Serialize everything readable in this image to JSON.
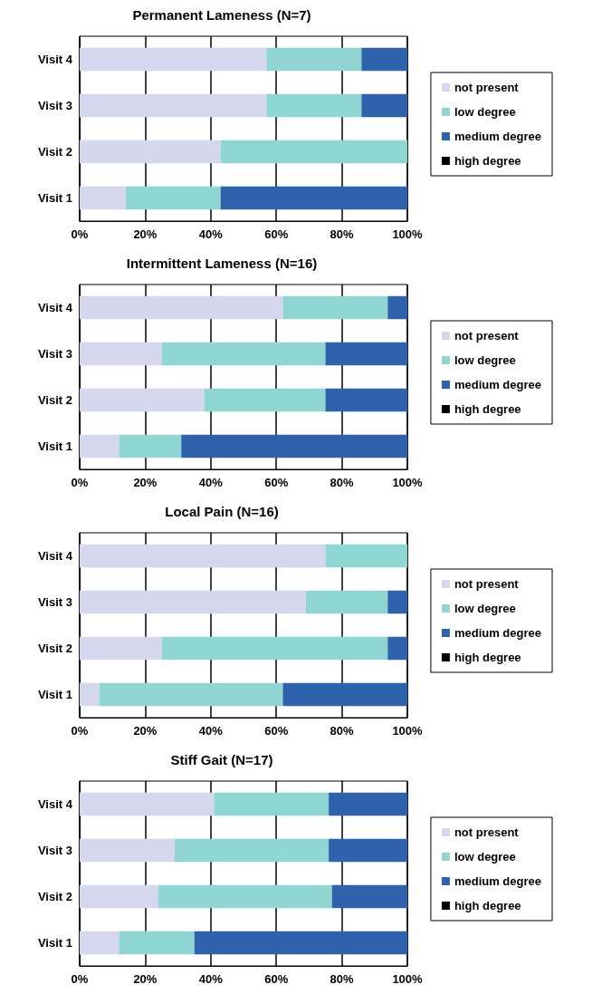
{
  "chart_data": [
    {
      "type": "bar",
      "orientation": "horizontal",
      "stacked": true,
      "title": "Permanent Lameness (N=7)",
      "categories": [
        "Visit 4",
        "Visit 3",
        "Visit 2",
        "Visit 1"
      ],
      "series": [
        {
          "name": "not present",
          "color": "#d4d7ee",
          "values": [
            57,
            57,
            43,
            14
          ]
        },
        {
          "name": "low degree",
          "color": "#8fd6d2",
          "values": [
            29,
            29,
            57,
            29
          ]
        },
        {
          "name": "medium degree",
          "color": "#2f62ad",
          "values": [
            14,
            14,
            0,
            57
          ]
        },
        {
          "name": "high degree",
          "color": "#000000",
          "values": [
            0,
            0,
            0,
            0
          ]
        }
      ],
      "xlim": [
        0,
        100
      ],
      "xticks": [
        {
          "value": 0,
          "label": "0%"
        },
        {
          "value": 20,
          "label": "20%"
        },
        {
          "value": 40,
          "label": "40%"
        },
        {
          "value": 60,
          "label": "60%"
        },
        {
          "value": 80,
          "label": "80%"
        },
        {
          "value": 100,
          "label": "100%"
        }
      ],
      "grid": "x",
      "legend": "right"
    },
    {
      "type": "bar",
      "orientation": "horizontal",
      "stacked": true,
      "title": "Intermittent Lameness (N=16)",
      "categories": [
        "Visit 4",
        "Visit 3",
        "Visit 2",
        "Visit 1"
      ],
      "series": [
        {
          "name": "not present",
          "color": "#d4d7ee",
          "values": [
            62,
            25,
            38,
            12
          ]
        },
        {
          "name": "low degree",
          "color": "#8fd6d2",
          "values": [
            32,
            50,
            37,
            19
          ]
        },
        {
          "name": "medium degree",
          "color": "#2f62ad",
          "values": [
            6,
            25,
            25,
            69
          ]
        },
        {
          "name": "high degree",
          "color": "#000000",
          "values": [
            0,
            0,
            0,
            0
          ]
        }
      ],
      "xlim": [
        0,
        100
      ],
      "xticks": [
        {
          "value": 0,
          "label": "0%"
        },
        {
          "value": 20,
          "label": "20%"
        },
        {
          "value": 40,
          "label": "40%"
        },
        {
          "value": 60,
          "label": "60%"
        },
        {
          "value": 80,
          "label": "80%"
        },
        {
          "value": 100,
          "label": "100%"
        }
      ],
      "grid": "x",
      "legend": "right"
    },
    {
      "type": "bar",
      "orientation": "horizontal",
      "stacked": true,
      "title": "Local Pain (N=16)",
      "categories": [
        "Visit 4",
        "Visit 3",
        "Visit 2",
        "Visit 1"
      ],
      "series": [
        {
          "name": "not present",
          "color": "#d4d7ee",
          "values": [
            75,
            69,
            25,
            6
          ]
        },
        {
          "name": "low degree",
          "color": "#8fd6d2",
          "values": [
            25,
            25,
            69,
            56
          ]
        },
        {
          "name": "medium degree",
          "color": "#2f62ad",
          "values": [
            0,
            6,
            6,
            38
          ]
        },
        {
          "name": "high degree",
          "color": "#000000",
          "values": [
            0,
            0,
            0,
            0
          ]
        }
      ],
      "xlim": [
        0,
        100
      ],
      "xticks": [
        {
          "value": 0,
          "label": "0%"
        },
        {
          "value": 20,
          "label": "20%"
        },
        {
          "value": 40,
          "label": "40%"
        },
        {
          "value": 60,
          "label": "60%"
        },
        {
          "value": 80,
          "label": "80%"
        },
        {
          "value": 100,
          "label": "100%"
        }
      ],
      "grid": "x",
      "legend": "right"
    },
    {
      "type": "bar",
      "orientation": "horizontal",
      "stacked": true,
      "title": "Stiff Gait (N=17)",
      "categories": [
        "Visit 4",
        "Visit 3",
        "Visit 2",
        "Visit 1"
      ],
      "series": [
        {
          "name": "not present",
          "color": "#d4d7ee",
          "values": [
            41,
            29,
            24,
            12
          ]
        },
        {
          "name": "low degree",
          "color": "#8fd6d2",
          "values": [
            35,
            47,
            53,
            23
          ]
        },
        {
          "name": "medium degree",
          "color": "#2f62ad",
          "values": [
            24,
            24,
            23,
            65
          ]
        },
        {
          "name": "high degree",
          "color": "#000000",
          "values": [
            0,
            0,
            0,
            0
          ]
        }
      ],
      "xlim": [
        0,
        100
      ],
      "xticks": [
        {
          "value": 0,
          "label": "0%"
        },
        {
          "value": 20,
          "label": "20%"
        },
        {
          "value": 40,
          "label": "40%"
        },
        {
          "value": 60,
          "label": "60%"
        },
        {
          "value": 80,
          "label": "80%"
        },
        {
          "value": 100,
          "label": "100%"
        }
      ],
      "grid": "x",
      "legend": "right"
    }
  ]
}
